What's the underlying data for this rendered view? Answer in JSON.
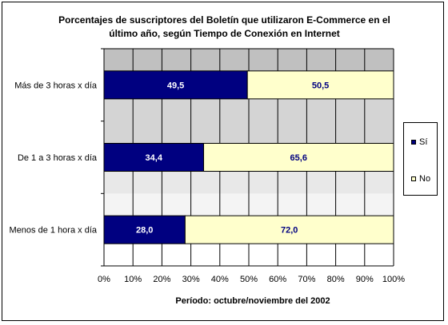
{
  "chart_data": {
    "type": "bar",
    "orientation": "horizontal",
    "stacked": "percent",
    "title": "Porcentajes de suscriptores del Boletín que utilizaron E-Commerce en el último año, según Tiempo de Conexión en Internet",
    "title_lines": [
      "Porcentajes de suscriptores del Boletín que utilizaron E-Commerce en el",
      "último año, según Tiempo de Conexión en Internet"
    ],
    "xlabel": "Período: octubre/noviembre del 2002",
    "ylabel": "",
    "xlim": [
      0,
      100
    ],
    "x_ticks": [
      "0%",
      "10%",
      "20%",
      "30%",
      "40%",
      "50%",
      "60%",
      "70%",
      "80%",
      "90%",
      "100%"
    ],
    "categories": [
      "Más de 3 horas x día",
      "De 1 a 3 horas x día",
      "Menos de 1 hora x día"
    ],
    "series": [
      {
        "name": "Sí",
        "color": "#000080",
        "values": [
          49.5,
          34.4,
          28.0
        ],
        "labels": [
          "49,5",
          "34,4",
          "28,0"
        ]
      },
      {
        "name": "No",
        "color": "#ffffcc",
        "values": [
          50.5,
          65.6,
          72.0
        ],
        "labels": [
          "50,5",
          "65,6",
          "72,0"
        ]
      }
    ],
    "legend_position": "right",
    "grid": true
  }
}
